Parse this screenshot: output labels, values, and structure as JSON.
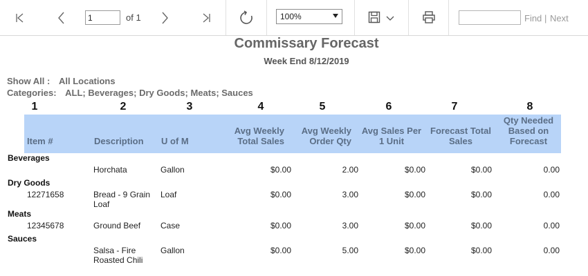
{
  "toolbar": {
    "page_value": "1",
    "page_of": "of 1",
    "zoom_value": "100%",
    "find_placeholder": "",
    "find_label": "Find",
    "find_separator": "|",
    "next_label": "Next"
  },
  "report": {
    "title": "Commissary Forecast",
    "subtitle": "Week End 8/12/2019",
    "show_all_label": "Show All :",
    "show_all_value": "All Locations",
    "categories_label": "Categories:",
    "categories_value": "ALL; Beverages; Dry Goods; Meats; Sauces",
    "column_numbers": [
      "1",
      "2",
      "3",
      "4",
      "5",
      "6",
      "7",
      "8"
    ],
    "headers": {
      "item": "Item #",
      "description": "Description",
      "uom": "U of M",
      "avg_weekly_total_sales": "Avg Weekly Total Sales",
      "avg_weekly_order_qty": "Avg Weekly Order Qty",
      "avg_sales_per_unit": "Avg Sales Per 1 Unit",
      "forecast_total_sales": "Forecast Total Sales",
      "qty_needed": "Qty Needed Based on Forecast"
    },
    "groups": [
      {
        "name": "Beverages",
        "rows": [
          {
            "item": "",
            "description": "Horchata",
            "uom": "Gallon",
            "total_sales": "$0.00",
            "order_qty": "2.00",
            "sales_per_unit": "$0.00",
            "forecast_sales": "$0.00",
            "qty_needed": "0.00"
          }
        ]
      },
      {
        "name": "Dry Goods",
        "rows": [
          {
            "item": "12271658",
            "description": "Bread - 9 Grain Loaf",
            "uom": "Loaf",
            "total_sales": "$0.00",
            "order_qty": "3.00",
            "sales_per_unit": "$0.00",
            "forecast_sales": "$0.00",
            "qty_needed": "0.00"
          }
        ]
      },
      {
        "name": "Meats",
        "rows": [
          {
            "item": "12345678",
            "description": "Ground Beef",
            "uom": "Case",
            "total_sales": "$0.00",
            "order_qty": "3.00",
            "sales_per_unit": "$0.00",
            "forecast_sales": "$0.00",
            "qty_needed": "0.00"
          }
        ]
      },
      {
        "name": "Sauces",
        "rows": [
          {
            "item": "",
            "description": "Salsa - Fire Roasted Chili",
            "uom": "Gallon",
            "total_sales": "$0.00",
            "order_qty": "5.00",
            "sales_per_unit": "$0.00",
            "forecast_sales": "$0.00",
            "qty_needed": "0.00"
          }
        ]
      }
    ]
  }
}
